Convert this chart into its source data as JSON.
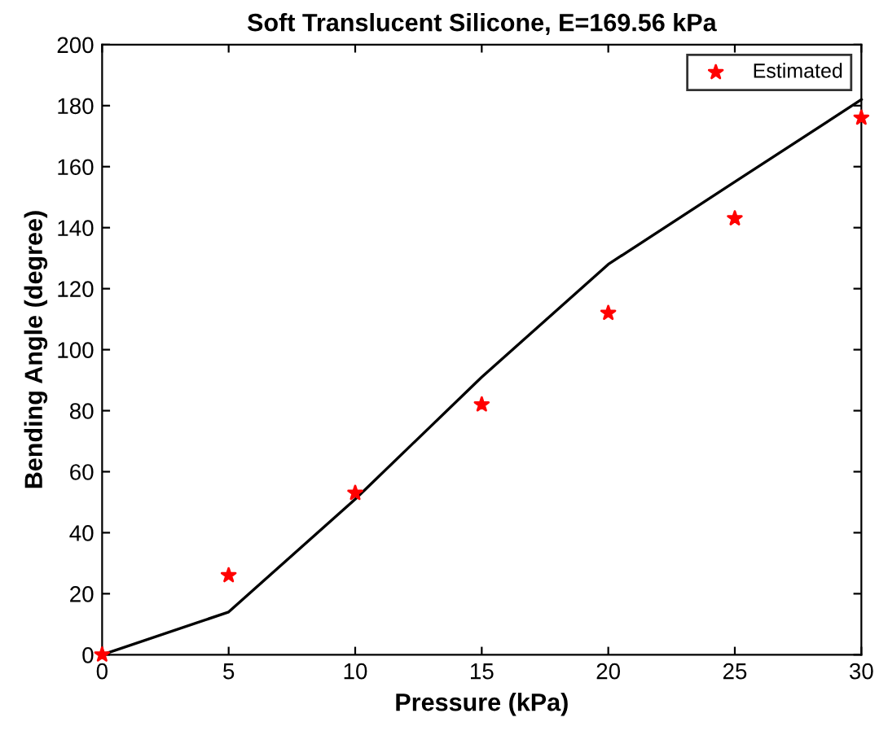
{
  "chart_data": {
    "type": "line",
    "title": "Soft Translucent Silicone, E=169.56 kPa",
    "xlabel": "Pressure (kPa)",
    "ylabel": "Bending Angle (degree)",
    "xlim": [
      0,
      30
    ],
    "xticks": [
      0,
      5,
      10,
      15,
      20,
      25,
      30
    ],
    "ylim": [
      0,
      200
    ],
    "yticks": [
      0,
      20,
      40,
      60,
      80,
      100,
      120,
      140,
      160,
      180,
      200
    ],
    "series": [
      {
        "color": "#000000",
        "x": [
          0,
          5,
          10,
          15,
          20,
          25,
          30
        ],
        "values": [
          0,
          14,
          51,
          91,
          128,
          155,
          182
        ]
      },
      {
        "type": "scatter",
        "name": "Estimated",
        "color": "#ff0000",
        "marker": "star",
        "x": [
          0,
          5,
          10,
          15,
          20,
          25,
          30
        ],
        "values": [
          0,
          26,
          53,
          82,
          112,
          143,
          176
        ]
      }
    ],
    "legend": "top right",
    "grid": false
  }
}
